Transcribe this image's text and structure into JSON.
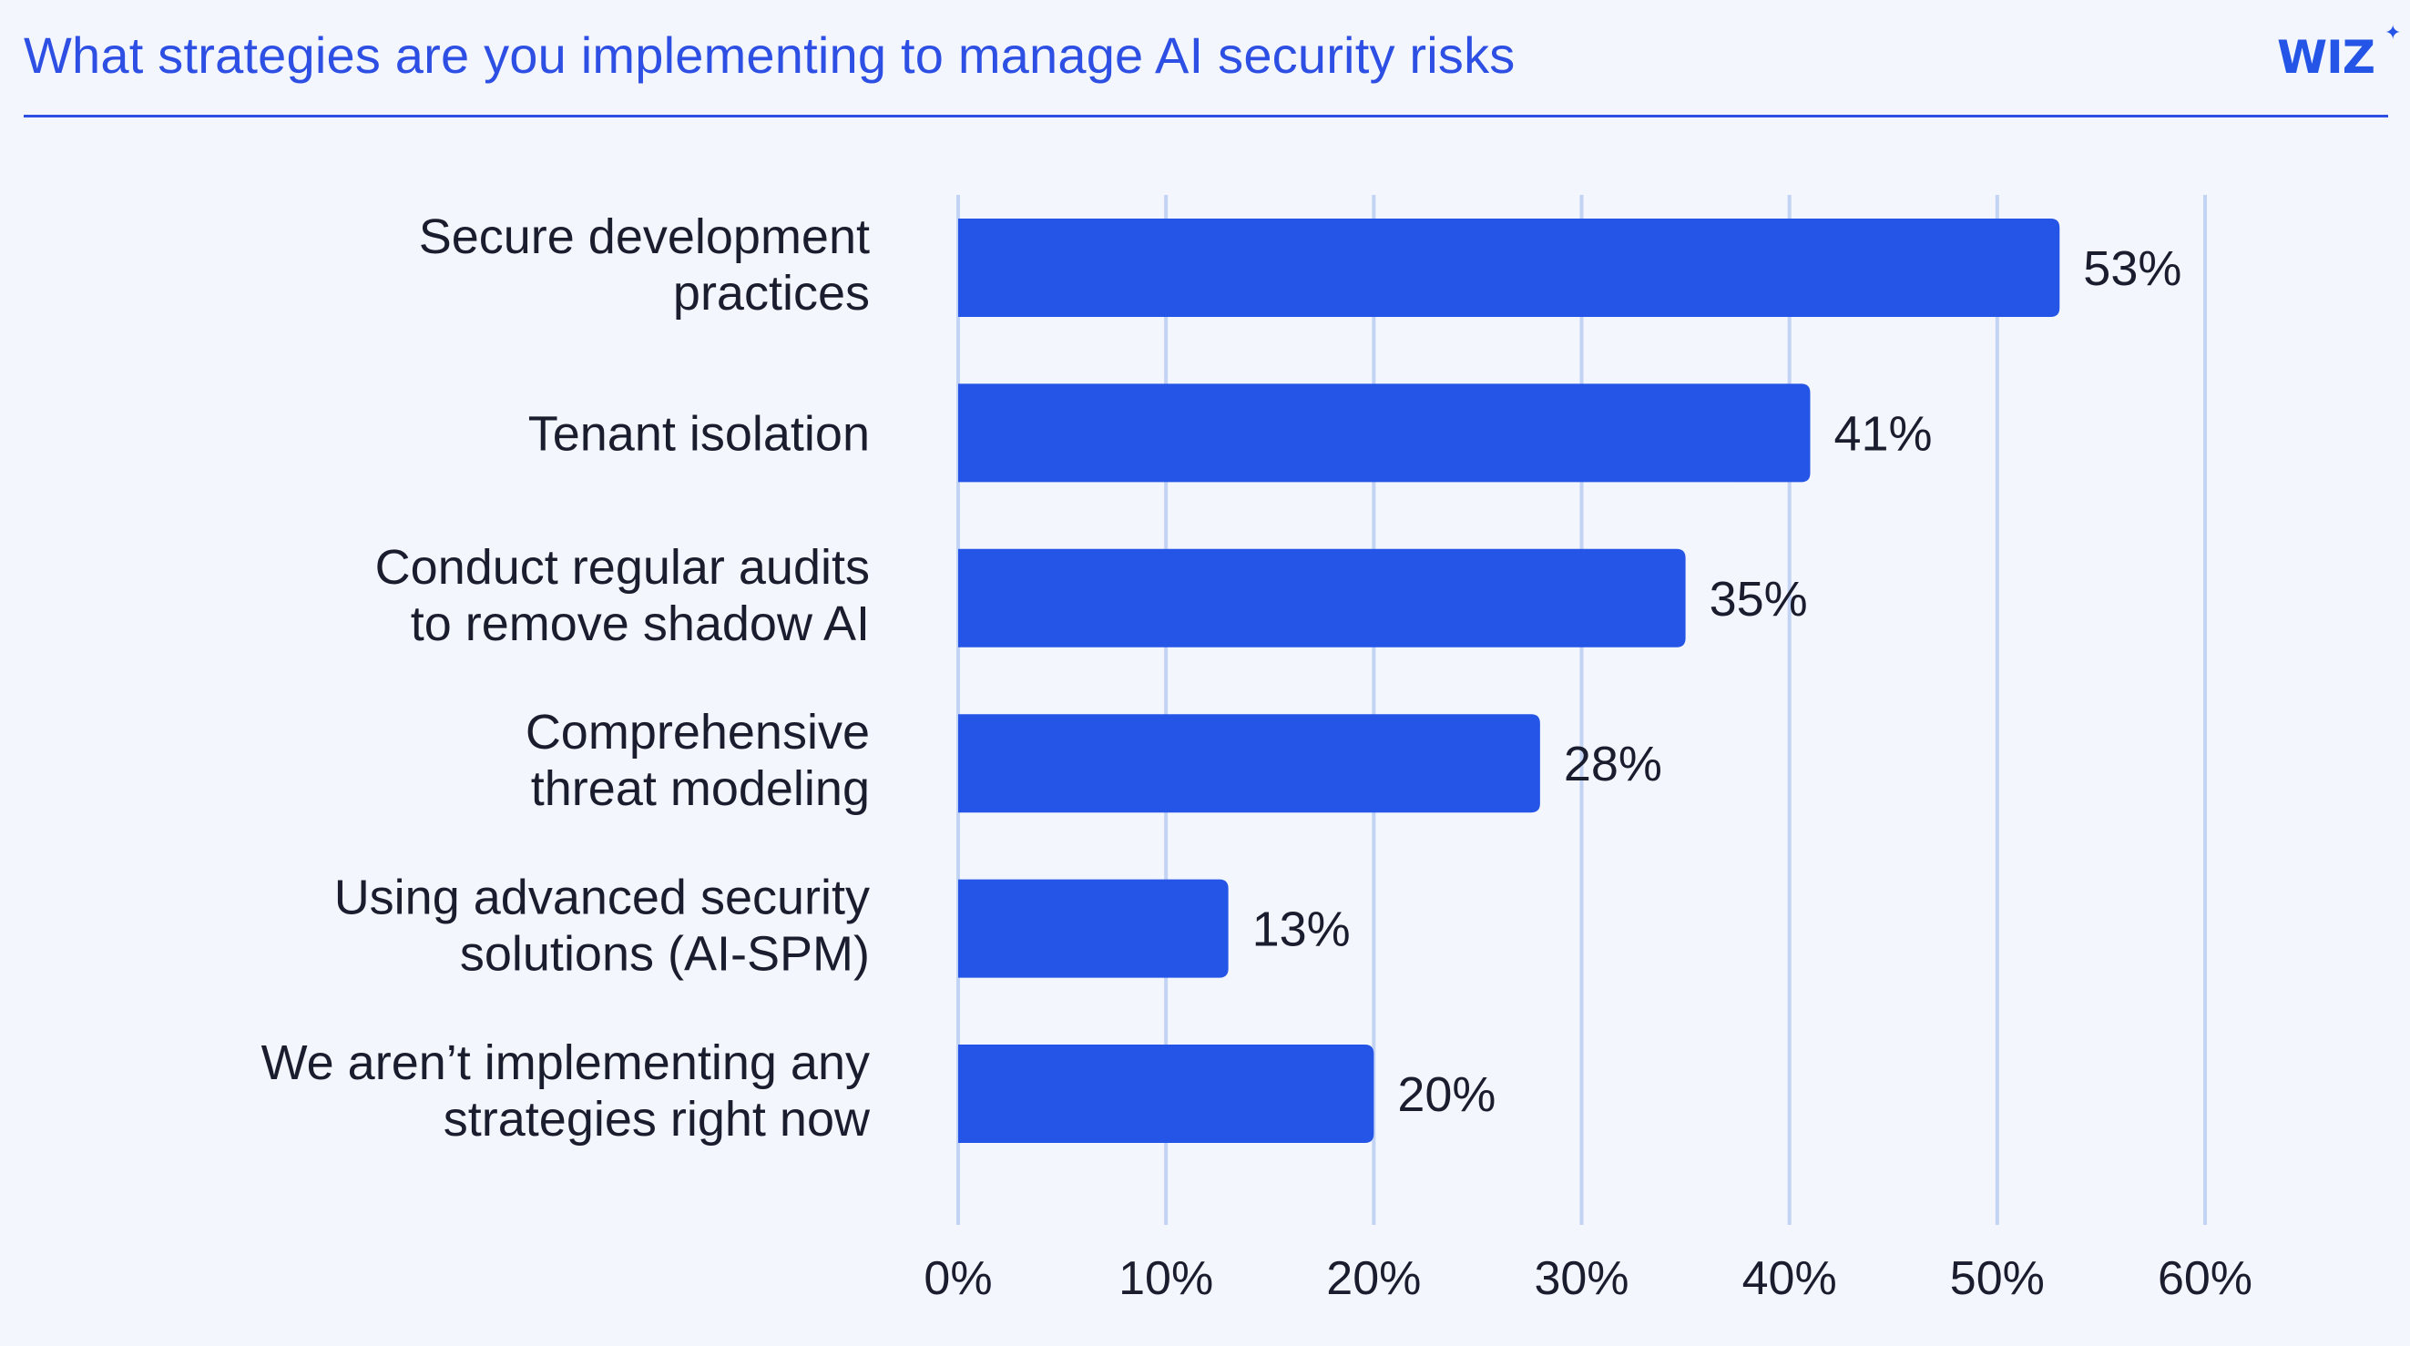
{
  "brand": {
    "logo_text": "WIZ",
    "accent_color": "#2d4fe3",
    "bar_color": "#2455e6",
    "grid_color": "#c3d3f4"
  },
  "chart_data": {
    "type": "bar",
    "orientation": "horizontal",
    "title": "What strategies are you implementing to manage AI security risks",
    "categories": [
      [
        "Secure development",
        "practices"
      ],
      [
        "Tenant isolation"
      ],
      [
        "Conduct regular audits",
        "to remove shadow AI"
      ],
      [
        "Comprehensive",
        "threat modeling"
      ],
      [
        "Using advanced security",
        "solutions (AI-SPM)"
      ],
      [
        "We aren’t implementing any",
        "strategies right now"
      ]
    ],
    "values": [
      53,
      41,
      35,
      28,
      13,
      20
    ],
    "value_labels": [
      "53%",
      "41%",
      "35%",
      "28%",
      "13%",
      "20%"
    ],
    "xlim": [
      0,
      60
    ],
    "xticks": [
      0,
      10,
      20,
      30,
      40,
      50,
      60
    ],
    "xtick_labels": [
      "0%",
      "10%",
      "20%",
      "30%",
      "40%",
      "50%",
      "60%"
    ],
    "xlabel": "",
    "ylabel": "",
    "grid": true
  }
}
